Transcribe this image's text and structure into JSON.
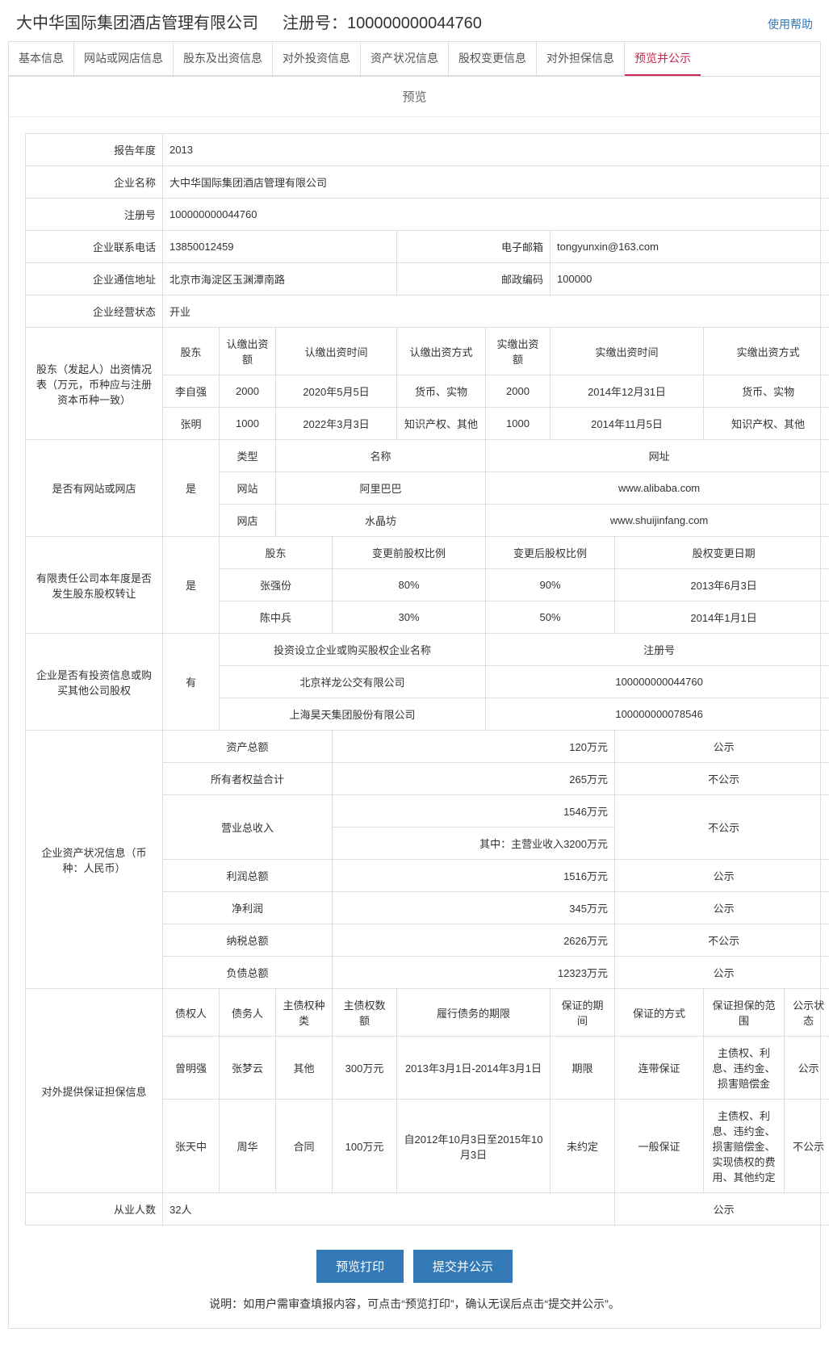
{
  "header": {
    "company_name": "大中华国际集团酒店管理有限公司",
    "reg_label": "注册号：",
    "reg_no": "100000000044760",
    "help": "使用帮助"
  },
  "tabs": [
    "基本信息",
    "网站或网店信息",
    "股东及出资信息",
    "对外投资信息",
    "资产状况信息",
    "股权变更信息",
    "对外担保信息",
    "预览并公示"
  ],
  "section_title": "预览",
  "basic": {
    "report_year_label": "报告年度",
    "report_year": "2013",
    "company_label": "企业名称",
    "company": "大中华国际集团酒店管理有限公司",
    "regno_label": "注册号",
    "regno": "100000000044760",
    "phone_label": "企业联系电话",
    "phone": "13850012459",
    "email_label": "电子邮箱",
    "email": "tongyunxin@163.com",
    "addr_label": "企业通信地址",
    "addr": "北京市海淀区玉渊潭南路",
    "zip_label": "邮政编码",
    "zip": "100000",
    "status_label": "企业经营状态",
    "status": "开业"
  },
  "shareholders": {
    "section_label": "股东（发起人）出资情况表（万元，币种应与注册资本币种一致）",
    "headers": [
      "股东",
      "认缴出资额",
      "认缴出资时间",
      "认缴出资方式",
      "实缴出资额",
      "实缴出资时间",
      "实缴出资方式"
    ],
    "rows": [
      [
        "李自强",
        "2000",
        "2020年5月5日",
        "货币、实物",
        "2000",
        "2014年12月31日",
        "货币、实物"
      ],
      [
        "张明",
        "1000",
        "2022年3月3日",
        "知识产权、其他",
        "1000",
        "2014年11月5日",
        "知识产权、其他"
      ]
    ]
  },
  "websites": {
    "section_label": "是否有网站或网店",
    "answer": "是",
    "headers": [
      "类型",
      "名称",
      "网址"
    ],
    "rows": [
      [
        "网站",
        "阿里巴巴",
        "www.alibaba.com"
      ],
      [
        "网店",
        "水晶坊",
        "www.shuijinfang.com"
      ]
    ]
  },
  "equity_change": {
    "section_label": "有限责任公司本年度是否发生股东股权转让",
    "answer": "是",
    "headers": [
      "股东",
      "变更前股权比例",
      "变更后股权比例",
      "股权变更日期"
    ],
    "rows": [
      [
        "张强份",
        "80%",
        "90%",
        "2013年6月3日"
      ],
      [
        "陈中兵",
        "30%",
        "50%",
        "2014年1月1日"
      ]
    ]
  },
  "investment": {
    "section_label": "企业是否有投资信息或购买其他公司股权",
    "answer": "有",
    "headers": [
      "投资设立企业或购买股权企业名称",
      "注册号"
    ],
    "rows": [
      [
        "北京祥龙公交有限公司",
        "100000000044760"
      ],
      [
        "上海昊天集团股份有限公司",
        "100000000078546"
      ]
    ]
  },
  "assets": {
    "section_label": "企业资产状况信息（币种：人民币）",
    "rows": [
      {
        "label": "资产总额",
        "value": "120万元",
        "pub": "公示"
      },
      {
        "label": "所有者权益合计",
        "value": "265万元",
        "pub": "不公示"
      },
      {
        "label": "营业总收入",
        "value": "1546万元",
        "sub": "其中：主营业收入3200万元",
        "pub": "不公示"
      },
      {
        "label": "利润总额",
        "value": "1516万元",
        "pub": "公示"
      },
      {
        "label": "净利润",
        "value": "345万元",
        "pub": "公示"
      },
      {
        "label": "纳税总额",
        "value": "2626万元",
        "pub": "不公示"
      },
      {
        "label": "负债总额",
        "value": "12323万元",
        "pub": "公示"
      }
    ]
  },
  "guarantee": {
    "section_label": "对外提供保证担保信息",
    "headers": [
      "债权人",
      "债务人",
      "主债权种类",
      "主债权数额",
      "履行债务的期限",
      "保证的期间",
      "保证的方式",
      "保证担保的范围",
      "公示状态"
    ],
    "rows": [
      [
        "曾明强",
        "张梦云",
        "其他",
        "300万元",
        "2013年3月1日-2014年3月1日",
        "期限",
        "连带保证",
        "主债权、利息、违约金、损害赔偿金",
        "公示"
      ],
      [
        "张天中",
        "周华",
        "合同",
        "100万元",
        "自2012年10月3日至2015年10月3日",
        "未约定",
        "一般保证",
        "主债权、利息、违约金、损害赔偿金、实现债权的费用、其他约定",
        "不公示"
      ]
    ]
  },
  "employees": {
    "label": "从业人数",
    "value": "32人",
    "pub": "公示"
  },
  "buttons": {
    "print": "预览打印",
    "submit": "提交并公示"
  },
  "note": "说明：如用户需审查填报内容，可点击“预览打印”，确认无误后点击“提交并公示”。"
}
